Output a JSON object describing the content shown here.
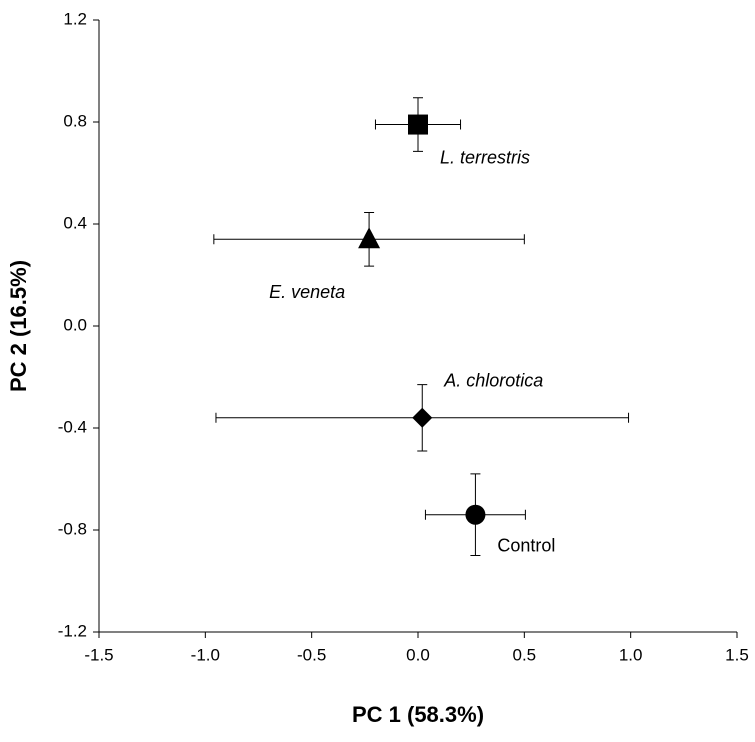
{
  "chart_data": {
    "type": "scatter",
    "xlabel": "PC 1 (58.3%)",
    "ylabel": "PC 2 (16.5%)",
    "xlim": [
      -1.5,
      1.5
    ],
    "xticks": [
      -1.5,
      {
        "value": -1.0,
        "label": "-1.0"
      },
      -0.5,
      {
        "value": 0.0,
        "label": "0.0"
      },
      0.5,
      {
        "value": 1.0,
        "label": "1.0"
      },
      1.5
    ],
    "ylim": [
      -1.2,
      1.2
    ],
    "yticks": [
      -1.2,
      -0.8,
      -0.4,
      {
        "value": 0.0,
        "label": "0.0"
      },
      0.4,
      0.8,
      1.2
    ],
    "series": [
      {
        "name": "L. terrestris",
        "marker": "square",
        "color": "#000000",
        "x": [
          0.0
        ],
        "values": [
          0.79
        ],
        "xerr": [
          0.2
        ],
        "yerr": [
          0.105
        ]
      },
      {
        "name": "E. veneta",
        "marker": "triangle",
        "color": "#000000",
        "x": [
          -0.23
        ],
        "values": [
          0.34
        ],
        "xerr": [
          0.73
        ],
        "yerr": [
          0.105
        ]
      },
      {
        "name": "A. chlorotica",
        "marker": "diamond",
        "color": "#000000",
        "x": [
          0.02
        ],
        "values": [
          -0.36
        ],
        "xerr": [
          0.97
        ],
        "yerr": [
          0.13
        ]
      },
      {
        "name": "Control",
        "marker": "circle",
        "color": "#000000",
        "x": [
          0.27
        ],
        "values": [
          -0.74
        ],
        "xerr": [
          0.235
        ],
        "yerr": [
          0.16
        ]
      }
    ]
  }
}
